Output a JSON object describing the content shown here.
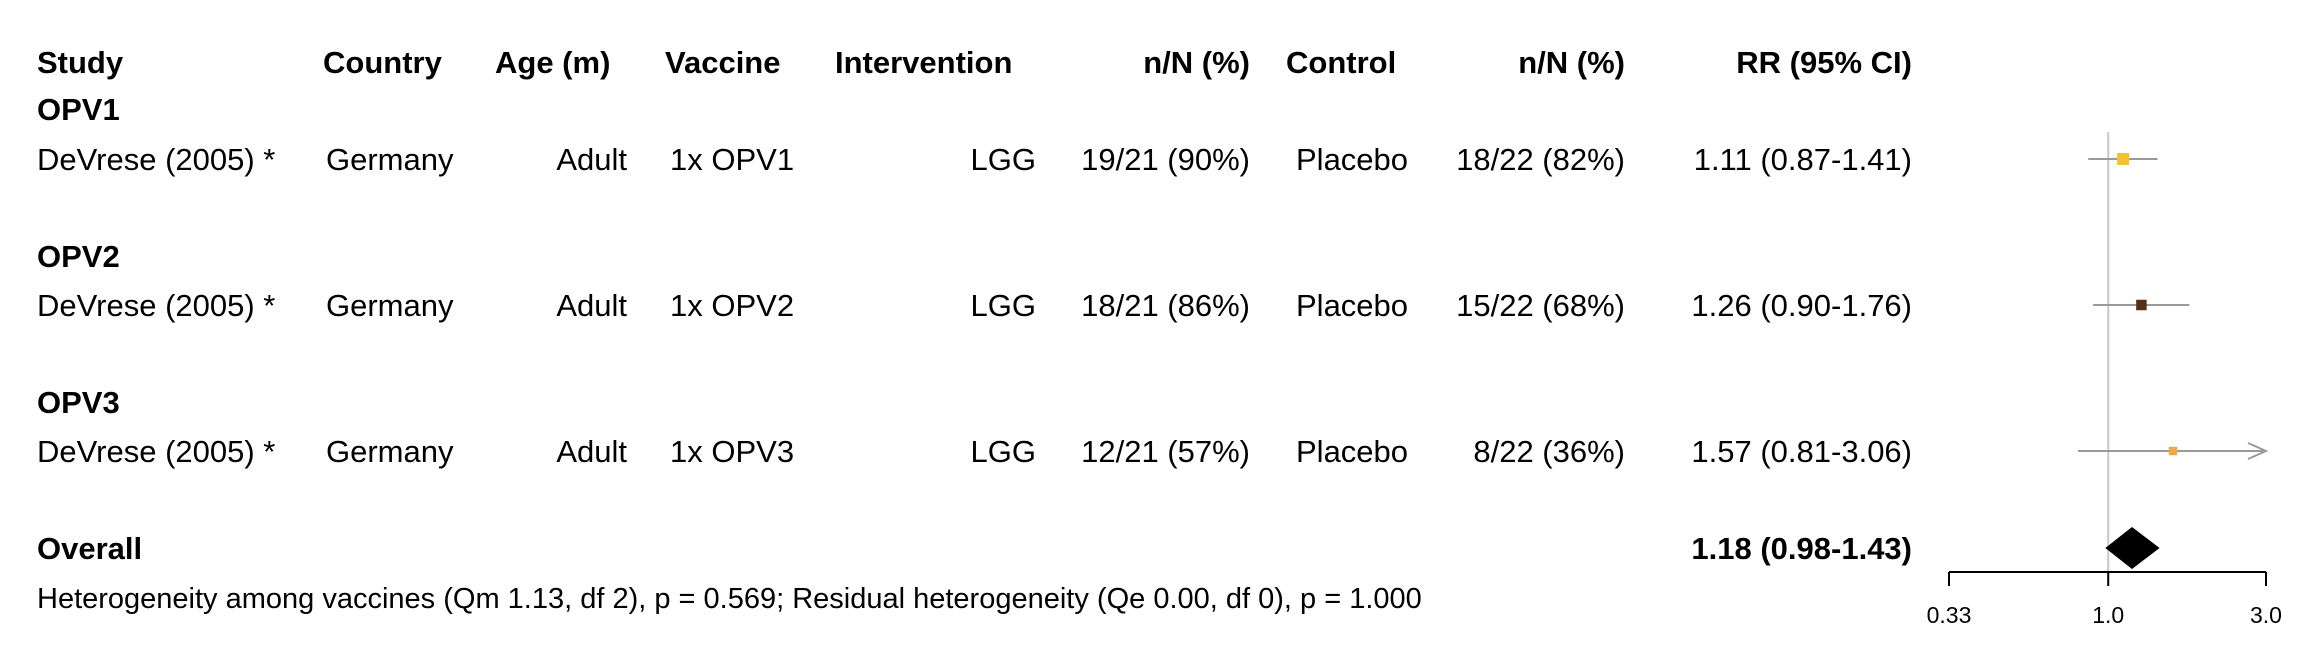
{
  "headers": {
    "study": "Study",
    "country": "Country",
    "age": "Age (m)",
    "vaccine": "Vaccine",
    "intervention": "Intervention",
    "int_nN": "n/N (%)",
    "control": "Control",
    "ctrl_nN": "n/N (%)",
    "rr": "RR (95% CI)"
  },
  "groups": [
    {
      "name": "OPV1",
      "rows": [
        {
          "study": "DeVrese (2005) *",
          "country": "Germany",
          "age": "Adult",
          "vaccine": "1x OPV1",
          "intervention": "LGG",
          "int_nN": "19/21 (90%)",
          "control": "Placebo",
          "ctrl_nN": "18/22 (82%)",
          "rr_text": "1.11 (0.87-1.41)"
        }
      ]
    },
    {
      "name": "OPV2",
      "rows": [
        {
          "study": "DeVrese (2005) *",
          "country": "Germany",
          "age": "Adult",
          "vaccine": "1x OPV2",
          "intervention": "LGG",
          "int_nN": "18/21 (86%)",
          "control": "Placebo",
          "ctrl_nN": "15/22 (68%)",
          "rr_text": "1.26 (0.90-1.76)"
        }
      ]
    },
    {
      "name": "OPV3",
      "rows": [
        {
          "study": "DeVrese (2005) *",
          "country": "Germany",
          "age": "Adult",
          "vaccine": "1x OPV3",
          "intervention": "LGG",
          "int_nN": "12/21 (57%)",
          "control": "Placebo",
          "ctrl_nN": "8/22 (36%)",
          "rr_text": "1.57 (0.81-3.06)"
        }
      ]
    }
  ],
  "overall": {
    "label": "Overall",
    "rr_text": "1.18 (0.98-1.43)"
  },
  "heterogeneity": "Heterogeneity among vaccines (Qm 1.13, df 2), p = 0.569; Residual heterogeneity (Qe 0.00, df 0), p = 1.000",
  "chart_data": {
    "type": "forest",
    "scale": "log",
    "xlim": [
      0.33,
      3.0
    ],
    "reference_line": 1.0,
    "ticks": [
      {
        "value": 0.33,
        "label": "0.33"
      },
      {
        "value": 1.0,
        "label": "1.0"
      },
      {
        "value": 3.0,
        "label": "3.0"
      }
    ],
    "estimates": [
      {
        "study": "DeVrese (2005) *",
        "group": "OPV1",
        "rr": 1.11,
        "lower": 0.87,
        "upper": 1.41,
        "color": "#f2c230",
        "weight": 1.0
      },
      {
        "study": "DeVrese (2005) *",
        "group": "OPV2",
        "rr": 1.26,
        "lower": 0.9,
        "upper": 1.76,
        "color": "#5a2e16",
        "weight": 0.75
      },
      {
        "study": "DeVrese (2005) *",
        "group": "OPV3",
        "rr": 1.57,
        "lower": 0.81,
        "upper": 3.06,
        "color": "#f0a848",
        "weight": 0.4
      }
    ],
    "summary": {
      "label": "Overall",
      "rr": 1.18,
      "lower": 0.98,
      "upper": 1.43,
      "color": "#000000"
    }
  }
}
